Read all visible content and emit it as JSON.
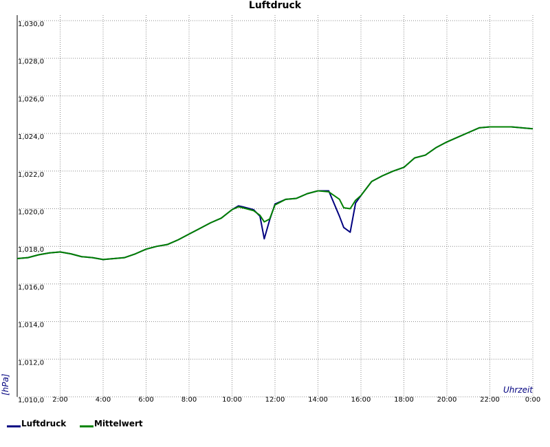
{
  "chart_data": {
    "type": "line",
    "title": "Luftdruck",
    "x_label": "Uhrzeit",
    "y_label": "[hPa]",
    "x": [
      0,
      0.5,
      1,
      1.5,
      2,
      2.5,
      3,
      3.5,
      4,
      4.5,
      5,
      5.5,
      6,
      6.5,
      7,
      7.5,
      8,
      8.5,
      9,
      9.5,
      10,
      10.3,
      10.5,
      11,
      11.3,
      11.5,
      11.75,
      12,
      12.5,
      13,
      13.5,
      14,
      14.5,
      15,
      15.2,
      15.5,
      15.75,
      16,
      16.5,
      17,
      17.5,
      18,
      18.5,
      19,
      19.5,
      20,
      20.5,
      21,
      21.5,
      22,
      22.5,
      23,
      23.5,
      24
    ],
    "series": [
      {
        "name": "Luftdruck",
        "color": "#00007f",
        "values": [
          1017.35,
          1017.4,
          1017.55,
          1017.65,
          1017.7,
          1017.6,
          1017.45,
          1017.4,
          1017.3,
          1017.35,
          1017.4,
          1017.6,
          1017.85,
          1018.0,
          1018.1,
          1018.35,
          1018.65,
          1018.95,
          1019.25,
          1019.5,
          1019.95,
          1020.15,
          1020.1,
          1019.95,
          1019.6,
          1018.4,
          1019.4,
          1020.25,
          1020.5,
          1020.55,
          1020.8,
          1020.95,
          1020.95,
          1019.6,
          1019.0,
          1018.75,
          1020.3,
          1020.7,
          1021.45,
          1021.75,
          1022.0,
          1022.2,
          1022.7,
          1022.85,
          1023.25,
          1023.55,
          1023.8,
          1024.05,
          1024.3,
          1024.35,
          1024.35,
          1024.35,
          1024.3,
          1024.25
        ]
      },
      {
        "name": "Mittelwert",
        "color": "#008000",
        "values": [
          1017.35,
          1017.4,
          1017.55,
          1017.65,
          1017.7,
          1017.6,
          1017.45,
          1017.4,
          1017.3,
          1017.35,
          1017.4,
          1017.6,
          1017.85,
          1018.0,
          1018.1,
          1018.35,
          1018.65,
          1018.95,
          1019.25,
          1019.5,
          1019.95,
          1020.1,
          1020.05,
          1019.9,
          1019.65,
          1019.3,
          1019.45,
          1020.2,
          1020.5,
          1020.55,
          1020.8,
          1020.95,
          1020.9,
          1020.5,
          1020.05,
          1020.0,
          1020.45,
          1020.7,
          1021.45,
          1021.75,
          1022.0,
          1022.2,
          1022.7,
          1022.85,
          1023.25,
          1023.55,
          1023.8,
          1024.05,
          1024.3,
          1024.35,
          1024.35,
          1024.35,
          1024.3,
          1024.25
        ]
      }
    ],
    "xlim": [
      0,
      24
    ],
    "xticks": [
      {
        "value": 2,
        "label": "2:00"
      },
      {
        "value": 4,
        "label": "4:00"
      },
      {
        "value": 6,
        "label": "6:00"
      },
      {
        "value": 8,
        "label": "8:00"
      },
      {
        "value": 10,
        "label": "10:00"
      },
      {
        "value": 12,
        "label": "12:00"
      },
      {
        "value": 14,
        "label": "14:00"
      },
      {
        "value": 16,
        "label": "16:00"
      },
      {
        "value": 18,
        "label": "18:00"
      },
      {
        "value": 20,
        "label": "20:00"
      },
      {
        "value": 22,
        "label": "22:00"
      },
      {
        "value": 24,
        "label": "0:00"
      }
    ],
    "ylim": [
      1010,
      1030
    ],
    "yticks": [
      {
        "value": 1010,
        "label": "1,010,0"
      },
      {
        "value": 1012,
        "label": "1,012,0"
      },
      {
        "value": 1014,
        "label": "1,014,0"
      },
      {
        "value": 1016,
        "label": "1,016,0"
      },
      {
        "value": 1018,
        "label": "1,018,0"
      },
      {
        "value": 1020,
        "label": "1,020,0"
      },
      {
        "value": 1022,
        "label": "1,022,0"
      },
      {
        "value": 1024,
        "label": "1,024,0"
      },
      {
        "value": 1026,
        "label": "1,026,0"
      },
      {
        "value": 1028,
        "label": "1,028,0"
      },
      {
        "value": 1030,
        "label": "1,030,0"
      }
    ],
    "grid": true
  }
}
